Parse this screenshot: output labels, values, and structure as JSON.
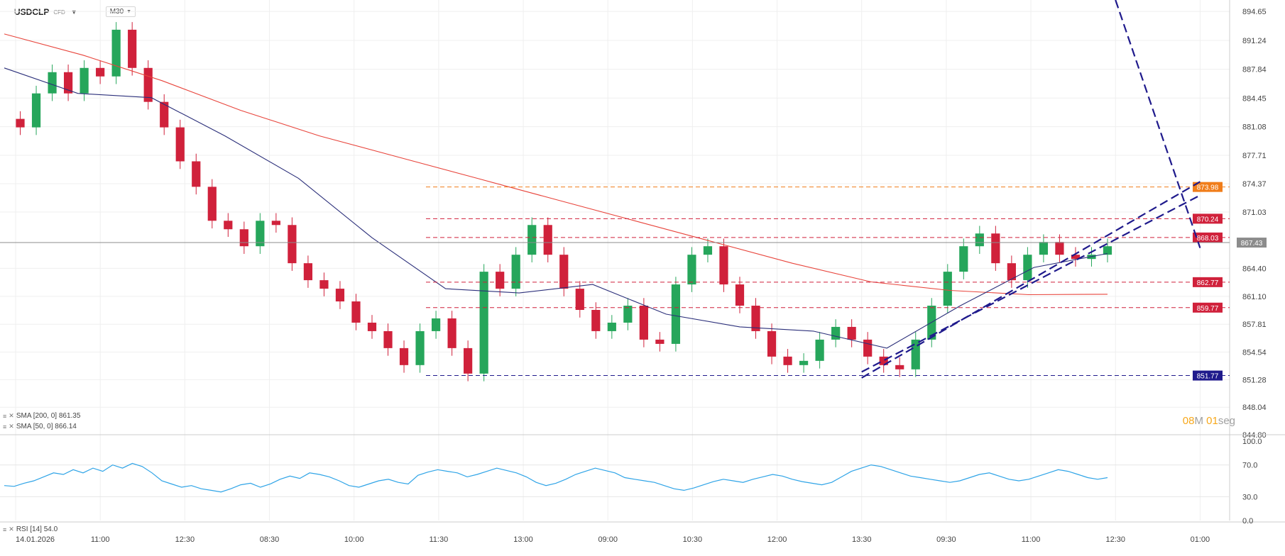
{
  "header": {
    "symbol": "USDCLP",
    "instrument_type": "CFD",
    "timeframe": "M30"
  },
  "timer": {
    "minutes": "08",
    "minutes_unit": "M",
    "seconds": "01",
    "seconds_unit": "seg"
  },
  "indicators": {
    "sma200": {
      "label": "SMA [200, 0] 861.35",
      "color": "#e8453c"
    },
    "sma50": {
      "label": "SMA [50, 0] 866.14",
      "color": "#2b2f7a"
    },
    "rsi": {
      "label": "RSI [14] 54.0",
      "color": "#2fa4e7"
    }
  },
  "colors": {
    "up": "#26a65b",
    "down": "#d0213b",
    "trendline": "#1f1a8c",
    "annotation": "#f07d1a",
    "current_price": "#8c8c8c"
  },
  "chart_data": [
    {
      "type": "candlestick",
      "title": "USDCLP CFD M30",
      "x_tick_labels": [
        "14.01.2026",
        "11:00",
        "12:30",
        "08:30",
        "10:00",
        "11:30",
        "13:00",
        "09:00",
        "10:30",
        "12:00",
        "13:30",
        "09:30",
        "11:00",
        "12:30",
        "01:00"
      ],
      "y_tick_labels": [
        "894.65",
        "891.24",
        "887.84",
        "884.45",
        "881.08",
        "877.71",
        "874.37",
        "871.03",
        "864.40",
        "861.10",
        "857.81",
        "854.54",
        "851.28",
        "848.04",
        "844.80"
      ],
      "ylim": [
        844.8,
        896.0
      ],
      "current_price": 867.43,
      "close_path": [
        882.0,
        881.0,
        885.0,
        887.5,
        885.0,
        888.0,
        887.0,
        892.5,
        888.0,
        884.0,
        881.0,
        877.0,
        874.0,
        870.0,
        869.0,
        867.0,
        870.0,
        869.5,
        865.0,
        863.0,
        862.0,
        860.5,
        858.0,
        857.0,
        855.0,
        853.0,
        857.0,
        858.5,
        855.0,
        852.0,
        864.0,
        862.0,
        866.0,
        869.5,
        866.0,
        862.0,
        859.5,
        857.0,
        858.0,
        860.0,
        856.0,
        855.5,
        862.5,
        866.0,
        867.0,
        862.5,
        860.0,
        857.0,
        854.0,
        853.0,
        853.5,
        856.0,
        857.5,
        856.0,
        854.0,
        853.0,
        852.5,
        856.0,
        860.0,
        864.0,
        867.0,
        868.5,
        865.0,
        863.0,
        866.0,
        867.5,
        866.0,
        865.5,
        866.0,
        867.0
      ],
      "series": [
        {
          "name": "SMA [200, 0]",
          "values": [
            892.0,
            889.5,
            886.5,
            883.0,
            880.0,
            877.5,
            875.0,
            872.5,
            870.0,
            867.5,
            865.0,
            862.8,
            861.8,
            861.3,
            861.35
          ]
        },
        {
          "name": "SMA [50, 0]",
          "values": [
            888.0,
            885.0,
            884.5,
            880.0,
            875.0,
            868.0,
            862.0,
            861.5,
            862.5,
            859.0,
            857.5,
            857.0,
            855.0,
            860.0,
            864.5,
            866.14
          ]
        }
      ],
      "horizontal_levels": [
        {
          "value": 873.98,
          "label": "873.98",
          "color": "#f07d1a",
          "style": "dashed"
        },
        {
          "value": 870.24,
          "label": "870.24",
          "color": "#d0213b",
          "style": "dashed"
        },
        {
          "value": 868.03,
          "label": "868.03",
          "color": "#d0213b",
          "style": "dashed"
        },
        {
          "value": 867.43,
          "label": "867.43",
          "color": "#8c8c8c",
          "style": "solid"
        },
        {
          "value": 862.77,
          "label": "862.77",
          "color": "#d0213b",
          "style": "dashed"
        },
        {
          "value": 859.77,
          "label": "859.77",
          "color": "#d0213b",
          "style": "dashed"
        },
        {
          "value": 851.77,
          "label": "851.77",
          "color": "#1f1a8c",
          "style": "dashed"
        }
      ],
      "trendlines": [
        {
          "from": [
            "12:30",
            896.0
          ],
          "to": [
            "01:00",
            866.8
          ]
        },
        {
          "from": [
            "13:30",
            851.5
          ],
          "to": [
            "01:00",
            874.6
          ]
        },
        {
          "from": [
            "13:30",
            852.2
          ],
          "to": [
            "01:00",
            873.0
          ]
        }
      ]
    },
    {
      "type": "line",
      "title": "RSI [14] 54.0",
      "y_tick_labels": [
        "100.0",
        "70.0",
        "30.0",
        "0.0"
      ],
      "ylim": [
        0,
        100
      ],
      "values": [
        44,
        43,
        47,
        50,
        55,
        60,
        58,
        64,
        60,
        66,
        62,
        70,
        66,
        72,
        68,
        60,
        50,
        46,
        42,
        44,
        40,
        38,
        36,
        40,
        45,
        47,
        42,
        46,
        52,
        56,
        53,
        60,
        58,
        55,
        50,
        44,
        42,
        46,
        50,
        52,
        48,
        46,
        57,
        61,
        64,
        62,
        60,
        55,
        58,
        62,
        66,
        63,
        60,
        55,
        48,
        44,
        47,
        52,
        58,
        62,
        66,
        63,
        60,
        54,
        52,
        50,
        48,
        44,
        40,
        38,
        41,
        45,
        49,
        52,
        50,
        48,
        52,
        55,
        58,
        56,
        52,
        49,
        47,
        45,
        48,
        55,
        62,
        66,
        70,
        68,
        64,
        60,
        56,
        54,
        52,
        50,
        48,
        50,
        54,
        58,
        60,
        56,
        52,
        50,
        52,
        56,
        60,
        64,
        62,
        58,
        54,
        52,
        54
      ]
    }
  ]
}
